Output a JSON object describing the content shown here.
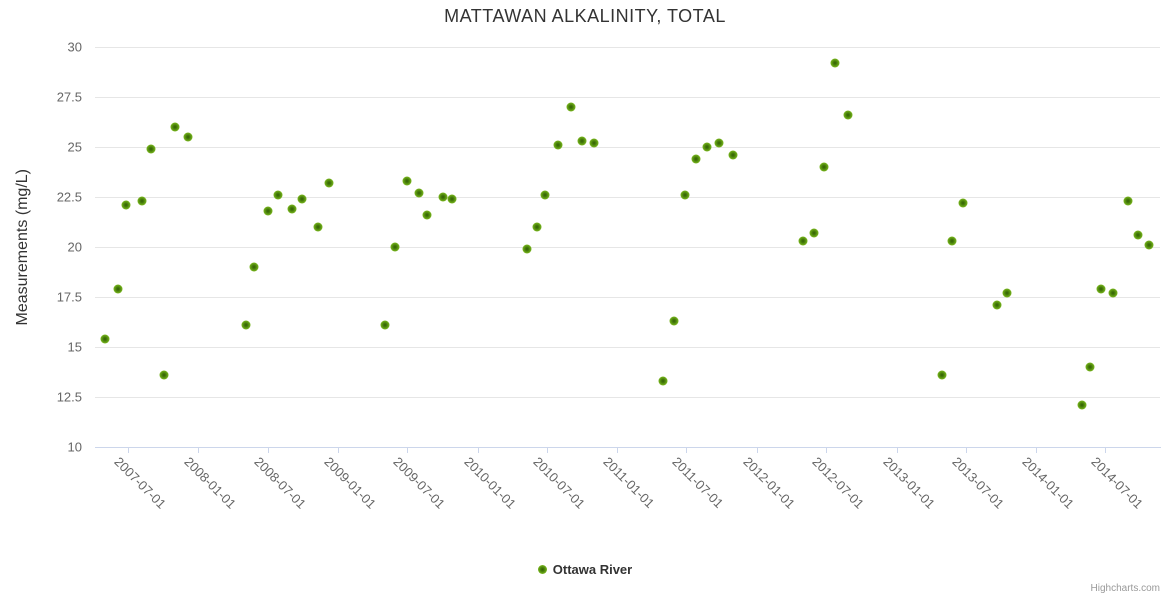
{
  "chart_data": {
    "type": "scatter",
    "title": "MATTAWAN ALKALINITY, TOTAL",
    "xlabel": "",
    "ylabel": "Measurements (mg/L)",
    "legend_position": "bottom-center",
    "grid": "horizontal-only",
    "y_axis": {
      "min": 10,
      "max": 30,
      "tick_interval": 2.5,
      "ticks": [
        10,
        12.5,
        15,
        17.5,
        20,
        22.5,
        25,
        27.5,
        30
      ]
    },
    "x_axis": {
      "min": "2007-04-06",
      "max": "2014-11-21",
      "tick_labels": [
        "2007-07-01",
        "2008-01-01",
        "2008-07-01",
        "2009-01-01",
        "2009-07-01",
        "2010-01-01",
        "2010-07-01",
        "2011-01-01",
        "2011-07-01",
        "2012-01-01",
        "2012-07-01",
        "2013-01-01",
        "2013-07-01",
        "2014-01-01",
        "2014-07-01"
      ]
    },
    "series": [
      {
        "name": "Ottawa River",
        "color": "#7ab71f",
        "marker_center_color": "#335c06",
        "points": [
          {
            "x": "2007-05-01",
            "y": 15.4
          },
          {
            "x": "2007-06-05",
            "y": 17.9
          },
          {
            "x": "2007-06-26",
            "y": 22.1
          },
          {
            "x": "2007-08-06",
            "y": 22.3
          },
          {
            "x": "2007-08-30",
            "y": 24.9
          },
          {
            "x": "2007-10-03",
            "y": 13.6
          },
          {
            "x": "2007-10-31",
            "y": 26.0
          },
          {
            "x": "2007-12-04",
            "y": 25.5
          },
          {
            "x": "2008-05-06",
            "y": 16.1
          },
          {
            "x": "2008-05-26",
            "y": 19.0
          },
          {
            "x": "2008-07-01",
            "y": 21.8
          },
          {
            "x": "2008-07-28",
            "y": 22.6
          },
          {
            "x": "2008-09-03",
            "y": 21.9
          },
          {
            "x": "2008-09-28",
            "y": 22.4
          },
          {
            "x": "2008-11-09",
            "y": 21.0
          },
          {
            "x": "2008-12-09",
            "y": 23.2
          },
          {
            "x": "2009-05-03",
            "y": 16.1
          },
          {
            "x": "2009-05-31",
            "y": 20.0
          },
          {
            "x": "2009-07-01",
            "y": 23.3
          },
          {
            "x": "2009-08-01",
            "y": 22.7
          },
          {
            "x": "2009-08-21",
            "y": 21.6
          },
          {
            "x": "2009-10-02",
            "y": 22.5
          },
          {
            "x": "2009-10-27",
            "y": 22.4
          },
          {
            "x": "2010-05-09",
            "y": 19.9
          },
          {
            "x": "2010-06-06",
            "y": 21.0
          },
          {
            "x": "2010-06-25",
            "y": 22.6
          },
          {
            "x": "2010-07-31",
            "y": 25.1
          },
          {
            "x": "2010-09-01",
            "y": 27.0
          },
          {
            "x": "2010-10-01",
            "y": 25.3
          },
          {
            "x": "2010-11-01",
            "y": 25.2
          },
          {
            "x": "2011-05-01",
            "y": 13.3
          },
          {
            "x": "2011-05-30",
            "y": 16.3
          },
          {
            "x": "2011-06-28",
            "y": 22.6
          },
          {
            "x": "2011-07-25",
            "y": 24.4
          },
          {
            "x": "2011-08-23",
            "y": 25.0
          },
          {
            "x": "2011-09-25",
            "y": 25.2
          },
          {
            "x": "2011-11-01",
            "y": 24.6
          },
          {
            "x": "2012-05-02",
            "y": 20.3
          },
          {
            "x": "2012-05-31",
            "y": 20.7
          },
          {
            "x": "2012-06-25",
            "y": 24.0
          },
          {
            "x": "2012-07-23",
            "y": 29.2
          },
          {
            "x": "2012-08-27",
            "y": 26.6
          },
          {
            "x": "2013-05-01",
            "y": 13.6
          },
          {
            "x": "2013-05-25",
            "y": 20.3
          },
          {
            "x": "2013-06-23",
            "y": 22.2
          },
          {
            "x": "2013-09-20",
            "y": 17.1
          },
          {
            "x": "2013-10-16",
            "y": 17.7
          },
          {
            "x": "2014-05-01",
            "y": 12.1
          },
          {
            "x": "2014-05-23",
            "y": 14.0
          },
          {
            "x": "2014-06-19",
            "y": 17.9
          },
          {
            "x": "2014-07-22",
            "y": 17.7
          },
          {
            "x": "2014-08-30",
            "y": 22.3
          },
          {
            "x": "2014-09-24",
            "y": 20.6
          },
          {
            "x": "2014-10-24",
            "y": 20.1
          }
        ]
      }
    ],
    "colors": {
      "grid": "#e6e6e6",
      "axis_line": "#ccd6eb",
      "title_text": "#333333",
      "label_text": "#666666"
    }
  },
  "credits": {
    "text": "Highcharts.com"
  }
}
